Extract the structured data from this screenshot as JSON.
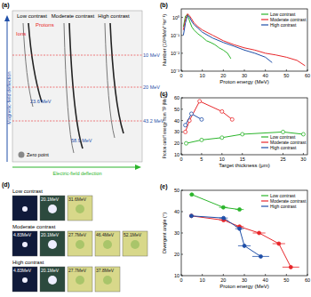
{
  "panel_a": {
    "label": "(a)",
    "columns": [
      "Low contrast",
      "Moderate contrast",
      "High contrast"
    ],
    "protons": "Protons",
    "ions": "Ions",
    "y_axis": "Magnetic-field deflection",
    "x_axis": "Electric-field deflection",
    "zero": "Zero point",
    "energy_lines": [
      "10 MeV",
      "20 MeV",
      "43.2 MeV"
    ],
    "cutoffs": [
      "23.6 MeV",
      "58.9 MeV"
    ]
  },
  "panel_d": {
    "label": "(d)",
    "rows": [
      {
        "name": "Low contrast",
        "films": [
          null,
          "20.1MeV",
          "31.6MeV"
        ]
      },
      {
        "name": "Moderate contrast",
        "films": [
          "4.83MeV",
          "20.1MeV",
          "27.7MeV",
          "46.4MeV",
          "52.1MeV"
        ]
      },
      {
        "name": "High contrast",
        "films": [
          "4.83MeV",
          "20.1MeV",
          "27.7MeV",
          "37.8MeV"
        ]
      }
    ]
  },
  "chart_data": [
    {
      "type": "line",
      "title": "(b)",
      "x_label": "Proton energy (MeV)",
      "y_label": "Number (10¹²MeV⁻¹sr⁻¹)",
      "log": "y",
      "legend": "upper right",
      "marker": "none",
      "xlim": [
        0,
        60
      ],
      "xticks": [
        0,
        10,
        20,
        30,
        40,
        50,
        60
      ],
      "ylim": [
        0.001,
        3
      ],
      "yticks": [
        {
          "value": 0.001,
          "label": "10⁻³"
        },
        {
          "value": 0.01,
          "label": "10⁻²"
        },
        {
          "value": 0.1,
          "label": "10⁻¹"
        },
        {
          "value": 1,
          "label": "10⁰"
        }
      ],
      "series": [
        {
          "name": "Low contrast",
          "color": "#2bb52b",
          "x": [
            1,
            2,
            3,
            4,
            5,
            6,
            8,
            10,
            12,
            14,
            16,
            18,
            20,
            22,
            23.6
          ],
          "values": [
            0.3,
            1.2,
            1.5,
            0.6,
            0.3,
            0.2,
            0.12,
            0.08,
            0.05,
            0.04,
            0.03,
            0.02,
            0.015,
            0.01,
            0.005
          ]
        },
        {
          "name": "Moderate contrast",
          "color": "#e8262a",
          "x": [
            1,
            2,
            3,
            4,
            5,
            6,
            8,
            10,
            15,
            20,
            25,
            30,
            35,
            40,
            45,
            50,
            55,
            58.9
          ],
          "values": [
            0.2,
            0.8,
            1.6,
            1.2,
            0.8,
            0.5,
            0.3,
            0.2,
            0.1,
            0.05,
            0.03,
            0.02,
            0.015,
            0.01,
            0.008,
            0.006,
            0.004,
            0.002
          ]
        },
        {
          "name": "High contrast",
          "color": "#1f4fa8",
          "x": [
            1,
            2,
            3,
            4,
            5,
            6,
            8,
            10,
            15,
            20,
            25,
            30,
            35,
            40,
            43.2
          ],
          "values": [
            0.1,
            0.5,
            1.3,
            1.0,
            0.6,
            0.4,
            0.25,
            0.15,
            0.07,
            0.04,
            0.025,
            0.015,
            0.01,
            0.006,
            0.003
          ]
        }
      ]
    },
    {
      "type": "line",
      "title": "(c)",
      "x_label": "Target thickness (μm)",
      "y_label": "Proton cutoff energy from TP (MeV)",
      "legend": "lower right",
      "marker": "open_circle",
      "xlim": [
        0,
        31
      ],
      "xticks": [
        0,
        5,
        10,
        15,
        25,
        30
      ],
      "ylim": [
        10,
        60
      ],
      "yticks": [
        10,
        20,
        30,
        40,
        50,
        60
      ],
      "series": [
        {
          "name": "Low contrast",
          "color": "#2bb52b",
          "x": [
            1.2,
            5,
            10,
            15,
            25,
            30
          ],
          "values": [
            20,
            23,
            25,
            28,
            30,
            28
          ]
        },
        {
          "name": "Moderate contrast",
          "color": "#e8262a",
          "x": [
            1,
            2,
            4.5,
            10,
            12.5
          ],
          "values": [
            30,
            40,
            57,
            48,
            41
          ]
        },
        {
          "name": "High contrast",
          "color": "#1f4fa8",
          "x": [
            1,
            2.5,
            5
          ],
          "values": [
            36,
            46,
            41
          ]
        }
      ]
    },
    {
      "type": "line",
      "title": "(e)",
      "x_label": "Proton energy (MeV)",
      "y_label": "Divergent angle (°)",
      "legend": "upper right",
      "marker": "circle",
      "xlim": [
        0,
        60
      ],
      "xticks": [
        0,
        10,
        20,
        30,
        40,
        50,
        60
      ],
      "ylim": [
        10,
        50
      ],
      "yticks": [
        10,
        20,
        30,
        40,
        50
      ],
      "series": [
        {
          "name": "Low contrast",
          "color": "#2bb52b",
          "x": [
            5,
            20,
            27.7
          ],
          "values": [
            48,
            42,
            41
          ],
          "xerr": [
            1,
            2,
            2
          ]
        },
        {
          "name": "Moderate contrast",
          "color": "#e8262a",
          "x": [
            4.83,
            20.1,
            27.7,
            37,
            46.4,
            52.1
          ],
          "values": [
            38,
            36,
            33,
            30,
            25,
            14
          ],
          "xerr": [
            1,
            2,
            2,
            3,
            3,
            4
          ]
        },
        {
          "name": "High contrast",
          "color": "#1f4fa8",
          "x": [
            4.83,
            20.1,
            27.7,
            30,
            37.8
          ],
          "values": [
            38,
            37,
            32,
            24,
            19
          ],
          "xerr": [
            1,
            2,
            2,
            3,
            4
          ]
        }
      ]
    }
  ]
}
